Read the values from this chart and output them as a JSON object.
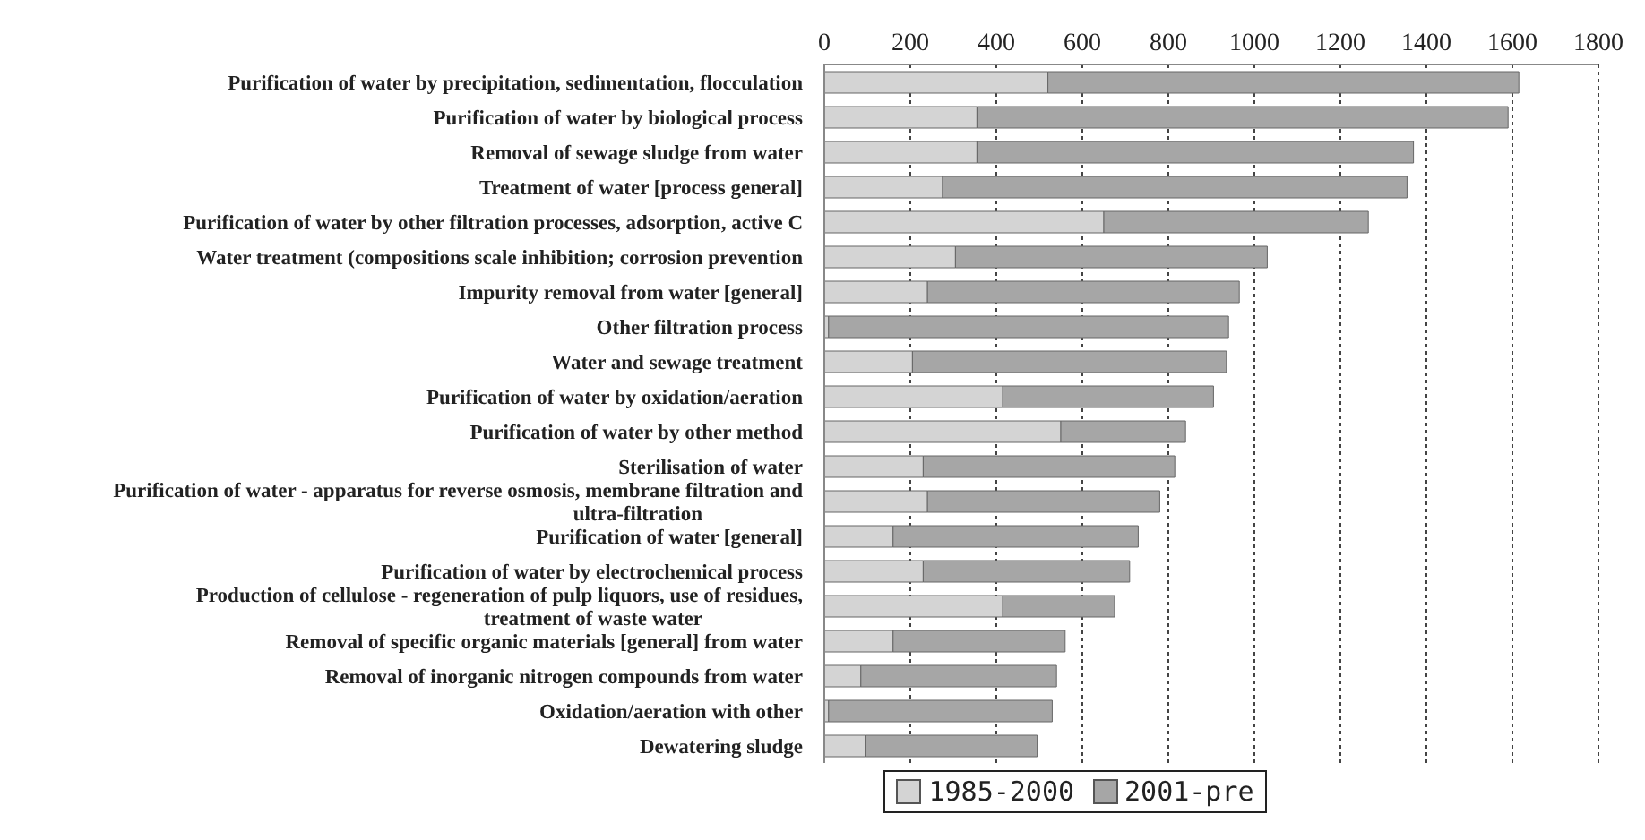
{
  "chart_data": {
    "type": "bar",
    "orientation": "horizontal",
    "stacked": true,
    "categories": [
      "Purification of water by precipitation, sedimentation, flocculation",
      "Purification of water by biological process",
      "Removal of sewage sludge from water",
      "Treatment of water [process general]",
      "Purification of water by other filtration processes, adsorption, active C",
      "Water treatment (compositions scale inhibition; corrosion prevention",
      "Impurity removal from water [general]",
      "Other filtration process",
      "Water and sewage treatment",
      "Purification of water by oxidation/aeration",
      "Purification of water by other method",
      "Sterilisation of water",
      "Purification of water - apparatus for reverse osmosis, membrane filtration and ultra-filtration",
      "Purification of water [general]",
      "Purification of water by electrochemical process",
      "Production of cellulose - regeneration of pulp liquors, use of residues, treatment of waste water",
      "Removal of specific organic materials [general] from water",
      "Removal of inorganic nitrogen compounds from water",
      "Oxidation/aeration with other",
      "Dewatering sludge"
    ],
    "series": [
      {
        "name": "1985-2000",
        "color": "#d4d4d4",
        "values": [
          520,
          355,
          355,
          275,
          650,
          305,
          240,
          10,
          205,
          415,
          550,
          230,
          240,
          160,
          230,
          415,
          160,
          85,
          10,
          95
        ]
      },
      {
        "name": "2001-pre",
        "color": "#a6a6a6",
        "values": [
          1095,
          1235,
          1015,
          1080,
          615,
          725,
          725,
          930,
          730,
          490,
          290,
          585,
          540,
          570,
          480,
          260,
          400,
          455,
          520,
          400
        ]
      }
    ],
    "xlim": [
      0,
      1800
    ],
    "xticks": [
      0,
      200,
      400,
      600,
      800,
      1000,
      1200,
      1400,
      1600,
      1800
    ],
    "grid": "x",
    "legend": "bottom"
  }
}
